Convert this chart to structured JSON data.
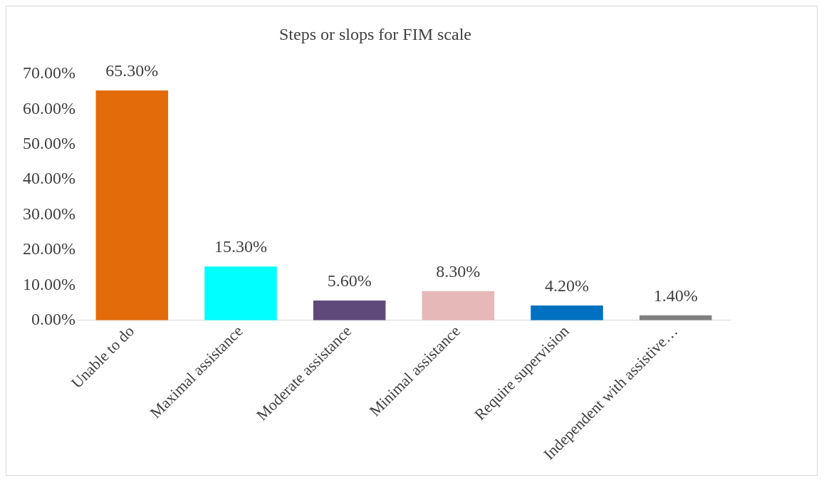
{
  "chart_data": {
    "type": "bar",
    "title": "Steps or slops for FIM scale",
    "categories": [
      "Unable to do",
      "Maximal assistance",
      "Moderate assistance",
      "Minimal assistance",
      "Require supervision",
      "Independent with assistive…"
    ],
    "values": [
      65.3,
      15.3,
      5.6,
      8.3,
      4.2,
      1.4
    ],
    "colors": [
      "#e36c0a",
      "#00ffff",
      "#5f497a",
      "#e6b9b8",
      "#0070c0",
      "#808080"
    ],
    "value_labels": [
      "65.30%",
      "15.30%",
      "5.60%",
      "8.30%",
      "4.20%",
      "1.40%"
    ],
    "ylim": [
      0,
      70
    ],
    "yticks": [
      {
        "value": 0,
        "label": "0.00%"
      },
      {
        "value": 10,
        "label": "10.00%"
      },
      {
        "value": 20,
        "label": "20.00%"
      },
      {
        "value": 30,
        "label": "30.00%"
      },
      {
        "value": 40,
        "label": "40.00%"
      },
      {
        "value": 50,
        "label": "50.00%"
      },
      {
        "value": 60,
        "label": "60.00%"
      },
      {
        "value": 70,
        "label": "70.00%"
      }
    ],
    "grid": false,
    "legend": false
  }
}
